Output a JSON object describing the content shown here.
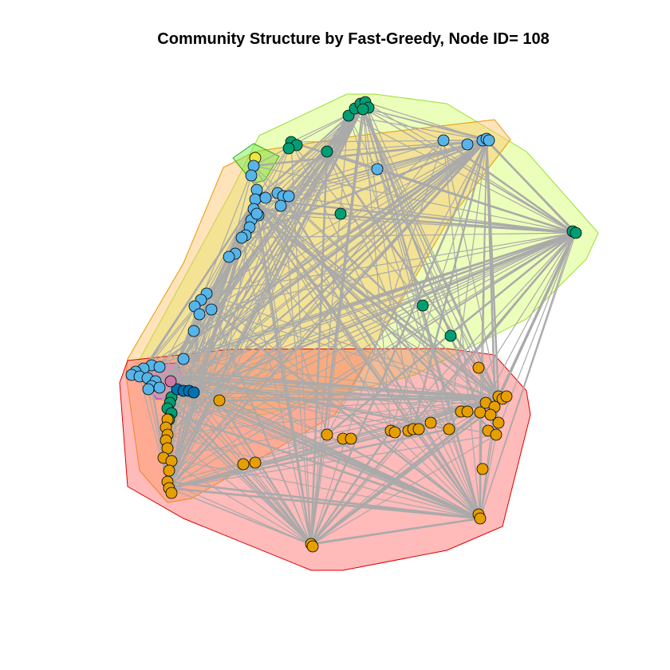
{
  "title": "Community Structure by Fast-Greedy, Node ID= 108",
  "communities": [
    {
      "id": "yellow-green",
      "fill": "#d4ff66",
      "stroke": "#99dd33"
    },
    {
      "id": "orange",
      "fill": "#ffc266",
      "stroke": "#e69900"
    },
    {
      "id": "red",
      "fill": "#ff6666",
      "stroke": "#dd0000"
    },
    {
      "id": "green",
      "fill": "#66ee44",
      "stroke": "#33aa22"
    },
    {
      "id": "purple",
      "fill": "#cc66ee",
      "stroke": "#9933cc"
    }
  ],
  "node_colors": {
    "sky-blue": "#56B4E9",
    "dark-green": "#009E73",
    "orange": "#E69F00",
    "yellow": "#F0E442",
    "dark-blue": "#0072B2",
    "pink": "#CC79A7"
  },
  "edge_color": "#aaaaaa"
}
